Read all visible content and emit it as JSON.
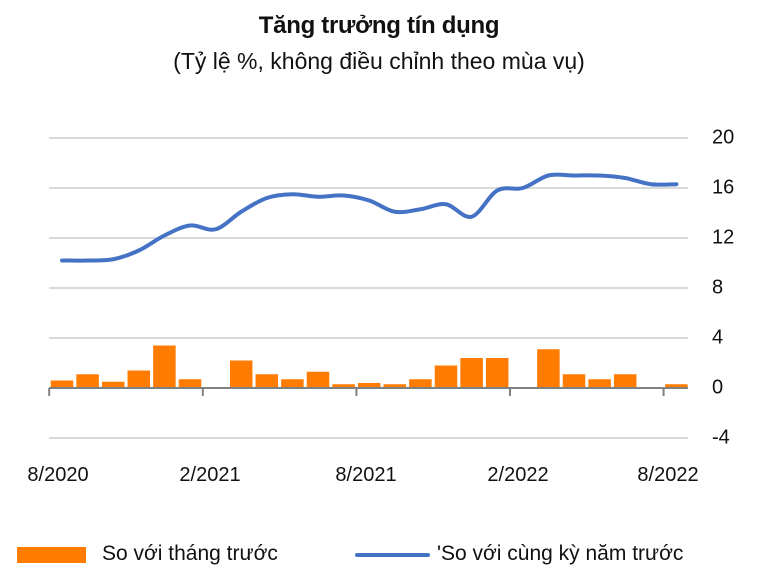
{
  "header": {
    "title": "Tăng trưởng tín dụng",
    "subtitle": "(Tỷ lệ %, không điều chỉnh theo mùa vụ)"
  },
  "colors": {
    "bar": "#FF7C00",
    "line": "#4472C4",
    "grid": "#D9D9D9",
    "axis": "#808080"
  },
  "legend": {
    "bar_label": "So với tháng trước",
    "line_label": "'So với cùng kỳ năm trước"
  },
  "axes": {
    "y_ticks": [
      "20",
      "16",
      "12",
      "8",
      "4",
      "0",
      "-4"
    ],
    "x_ticks": [
      "8/2020",
      "2/2021",
      "8/2021",
      "2/2022",
      "8/2022"
    ]
  },
  "chart_data": {
    "type": "bar+line",
    "title": "Tăng trưởng tín dụng",
    "subtitle": "(Tỷ lệ %, không điều chỉnh theo mùa vụ)",
    "xlabel": "",
    "ylabel": "",
    "ylim": [
      -4,
      20
    ],
    "y_ticks": [
      -4,
      0,
      4,
      8,
      12,
      16,
      20
    ],
    "y_axis_position": "right",
    "grid": true,
    "legend_position": "bottom",
    "categories": [
      "8/2020",
      "9/2020",
      "10/2020",
      "11/2020",
      "12/2020",
      "1/2021",
      "2/2021",
      "3/2021",
      "4/2021",
      "5/2021",
      "6/2021",
      "7/2021",
      "8/2021",
      "9/2021",
      "10/2021",
      "11/2021",
      "12/2021",
      "1/2022",
      "2/2022",
      "3/2022",
      "4/2022",
      "5/2022",
      "6/2022",
      "7/2022",
      "8/2022"
    ],
    "x_tick_labels": [
      "8/2020",
      "2/2021",
      "8/2021",
      "2/2022",
      "8/2022"
    ],
    "series": [
      {
        "name": "So với tháng trước",
        "type": "bar",
        "color": "#FF7C00",
        "values": [
          0.6,
          1.1,
          0.5,
          1.4,
          3.4,
          0.7,
          0.0,
          2.2,
          1.1,
          0.7,
          1.3,
          0.3,
          0.4,
          0.3,
          0.7,
          1.8,
          2.4,
          2.4,
          0.0,
          3.1,
          1.1,
          0.7,
          1.1,
          0.0,
          0.3
        ]
      },
      {
        "name": "'So với cùng kỳ năm trước",
        "type": "line",
        "color": "#4472C4",
        "values": [
          10.2,
          10.2,
          10.3,
          11.0,
          12.2,
          13.0,
          12.7,
          14.1,
          15.2,
          15.5,
          15.3,
          15.4,
          15.0,
          14.1,
          14.3,
          14.7,
          13.7,
          15.8,
          16.0,
          17.0,
          17.0,
          17.0,
          16.8,
          16.3,
          16.3
        ]
      }
    ]
  }
}
